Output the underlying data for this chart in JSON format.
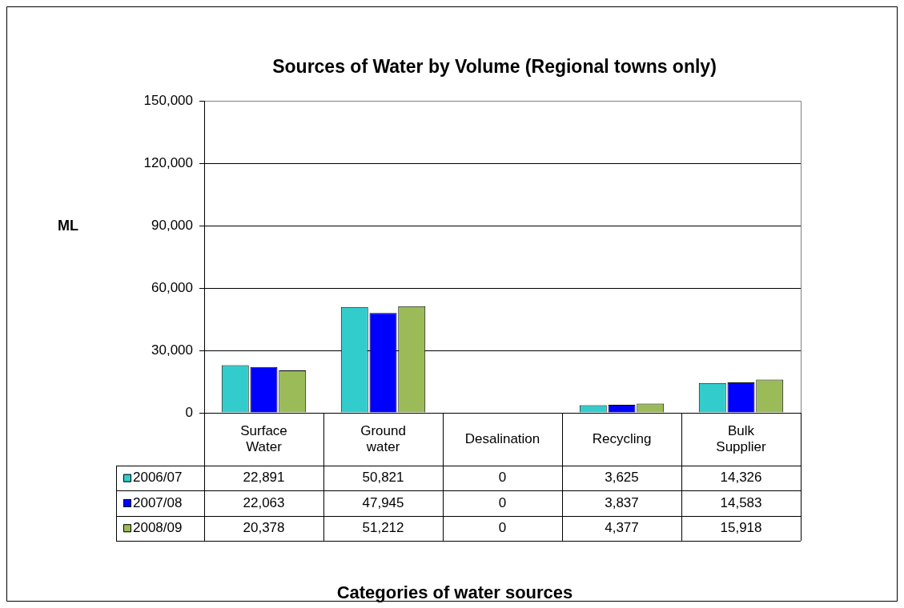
{
  "chart_data": {
    "type": "bar",
    "title": "Sources of Water by Volume (Regional towns only)",
    "ylabel": "ML",
    "annotations": [
      "Categories of water sources"
    ],
    "categories": [
      "Surface Water",
      "Ground water",
      "Desalination",
      "Recycling",
      "Bulk Supplier"
    ],
    "series": [
      {
        "name": "2006/07",
        "color": "#33cccc",
        "values": [
          22891,
          50821,
          0,
          3625,
          14326
        ],
        "value_labels": [
          "22,891",
          "50,821",
          "0",
          "3,625",
          "14,326"
        ]
      },
      {
        "name": "2007/08",
        "color": "#0000ff",
        "values": [
          22063,
          47945,
          0,
          3837,
          14583
        ],
        "value_labels": [
          "22,063",
          "47,945",
          "0",
          "3,837",
          "14,583"
        ]
      },
      {
        "name": "2008/09",
        "color": "#9bbb59",
        "values": [
          20378,
          51212,
          0,
          4377,
          15918
        ],
        "value_labels": [
          "20,378",
          "51,212",
          "0",
          "4,377",
          "15,918"
        ]
      }
    ],
    "ylim": [
      0,
      150000
    ],
    "yticks": [
      {
        "value": 0,
        "label": "0"
      },
      {
        "value": 30000,
        "label": "30,000"
      },
      {
        "value": 60000,
        "label": "60,000"
      },
      {
        "value": 90000,
        "label": "90,000"
      },
      {
        "value": 120000,
        "label": "120,000"
      },
      {
        "value": 150000,
        "label": "150,000"
      }
    ],
    "grid": "y",
    "legend": "bottom"
  }
}
